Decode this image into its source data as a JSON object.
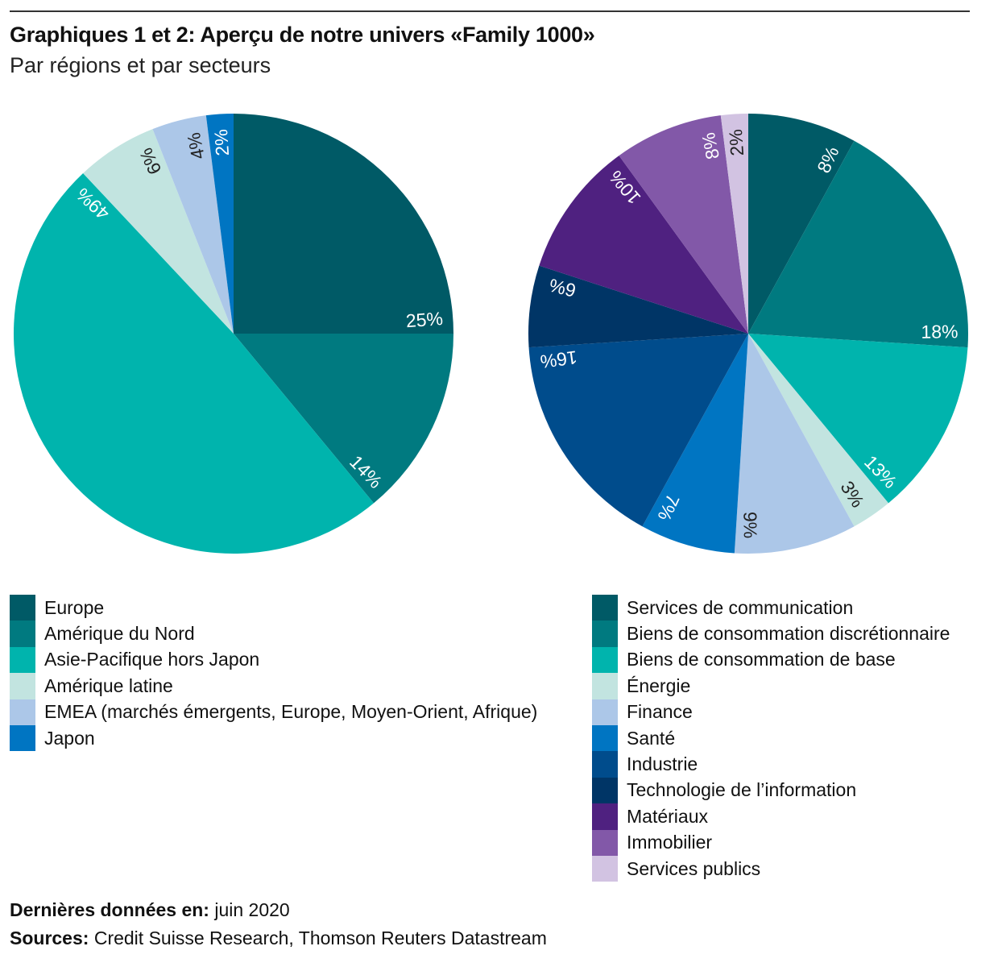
{
  "header": {
    "title": "Graphiques 1 et 2: Aperçu de notre univers «Family 1000»",
    "subtitle": "Par régions et par secteurs"
  },
  "chart_data": [
    {
      "type": "pie",
      "title": "Par régions",
      "unit": "%",
      "categories": [
        "Europe",
        "Amérique du Nord",
        "Asie-Pacifique hors Japon",
        "Amérique latine",
        "EMEA (marchés émergents, Europe, Moyen-Orient, Afrique)",
        "Japon"
      ],
      "values": [
        25,
        14,
        49,
        6,
        4,
        2
      ],
      "labels": [
        "25%",
        "14%",
        "49%",
        "6%",
        "4%",
        "2%"
      ],
      "colors": [
        "#005a66",
        "#007a80",
        "#00b4ad",
        "#c2e4e0",
        "#acc7e8",
        "#0075c2"
      ],
      "label_colors": [
        "#ffffff",
        "#ffffff",
        "#ffffff",
        "#222222",
        "#222222",
        "#ffffff"
      ],
      "start": "12 o'clock",
      "direction": "clockwise",
      "legend": "bottom-left"
    },
    {
      "type": "pie",
      "title": "Par secteurs",
      "unit": "%",
      "categories": [
        "Services de communication",
        "Biens de consommation discrétionnaire",
        "Biens de consommation de base",
        "Énergie",
        "Finance",
        "Santé",
        "Industrie",
        "Technologie de l’information",
        "Matériaux",
        "Immobilier",
        "Services publics"
      ],
      "values": [
        8,
        18,
        13,
        3,
        9,
        7,
        16,
        6,
        10,
        8,
        2
      ],
      "labels": [
        "8%",
        "18%",
        "13%",
        "3%",
        "9%",
        "7%",
        "16%",
        "6%",
        "10%",
        "8%",
        "2%"
      ],
      "colors": [
        "#005a66",
        "#007a80",
        "#00b4ad",
        "#c2e4e0",
        "#acc7e8",
        "#0075c2",
        "#004c8c",
        "#003566",
        "#4f2180",
        "#8258a8",
        "#d2c3e2"
      ],
      "label_colors": [
        "#ffffff",
        "#ffffff",
        "#ffffff",
        "#222222",
        "#222222",
        "#ffffff",
        "#ffffff",
        "#ffffff",
        "#ffffff",
        "#ffffff",
        "#222222"
      ],
      "start": "12 o'clock",
      "direction": "clockwise",
      "legend": "bottom-right"
    }
  ],
  "legends": {
    "regions": [
      "Europe",
      "Amérique du Nord",
      "Asie-Pacifique hors Japon",
      "Amérique latine",
      "EMEA (marchés émergents, Europe, Moyen-Orient, Afrique)",
      "Japon"
    ],
    "sectors": [
      "Services de communication",
      "Biens de consommation discrétionnaire",
      "Biens de consommation de base",
      "Énergie",
      "Finance",
      "Santé",
      "Industrie",
      "Technologie de l’information",
      "Matériaux",
      "Immobilier",
      "Services publics"
    ]
  },
  "footer": {
    "date_label": "Dernières données en:",
    "date_value": "juin 2020",
    "sources_label": "Sources:",
    "sources_value": "Credit Suisse Research, Thomson Reuters Datastream"
  }
}
